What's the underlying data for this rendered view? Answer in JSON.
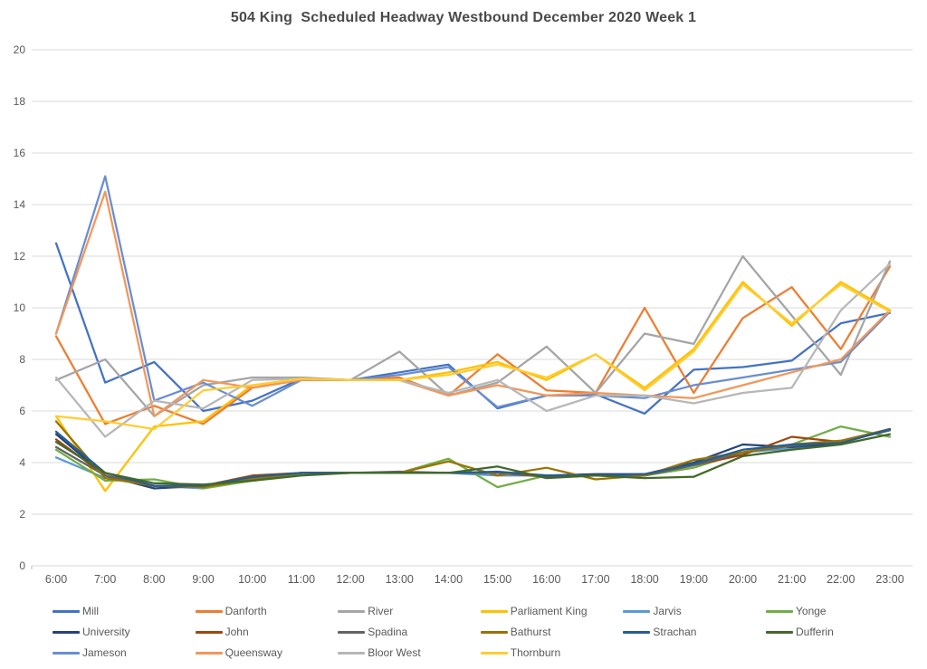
{
  "chart": {
    "title": "504 King  Scheduled Headway Westbound December 2020 Week 1"
  },
  "chart_data": {
    "type": "line",
    "title": "504 King  Scheduled Headway Westbound December 2020 Week 1",
    "xlabel": "",
    "ylabel": "",
    "x": [
      "6:00",
      "7:00",
      "8:00",
      "9:00",
      "10:00",
      "11:00",
      "12:00",
      "13:00",
      "14:00",
      "15:00",
      "16:00",
      "17:00",
      "18:00",
      "19:00",
      "20:00",
      "21:00",
      "22:00",
      "23:00"
    ],
    "ylim": [
      0,
      20
    ],
    "y_ticks": [
      0,
      2,
      4,
      6,
      8,
      10,
      12,
      14,
      16,
      18,
      20
    ],
    "grid": true,
    "legend_position": "bottom",
    "gridline_color": "#D9D9D9",
    "axis_label_color": "#595959",
    "series": [
      {
        "name": "Mill",
        "color": "#4472C4",
        "values": [
          12.5,
          7.1,
          7.9,
          6.0,
          6.4,
          7.25,
          7.2,
          7.5,
          7.8,
          6.1,
          6.6,
          6.65,
          5.9,
          7.6,
          7.7,
          7.95,
          9.4,
          9.8
        ]
      },
      {
        "name": "Danforth",
        "color": "#ED7D31",
        "values": [
          8.9,
          5.5,
          6.2,
          5.5,
          6.9,
          7.2,
          7.2,
          7.3,
          6.6,
          8.2,
          6.8,
          6.7,
          10.0,
          6.7,
          9.6,
          10.8,
          8.4,
          11.6
        ]
      },
      {
        "name": "River",
        "color": "#A5A5A5",
        "values": [
          7.2,
          8.0,
          5.8,
          7.0,
          7.3,
          7.3,
          7.2,
          8.3,
          6.6,
          7.1,
          8.5,
          6.7,
          9.0,
          8.6,
          12.0,
          9.7,
          7.4,
          11.8
        ]
      },
      {
        "name": "Parliament King",
        "color": "#FFC000",
        "values": [
          5.8,
          2.9,
          5.4,
          5.6,
          7.0,
          7.2,
          7.2,
          7.2,
          7.5,
          7.9,
          7.2,
          8.2,
          6.9,
          8.4,
          11.0,
          9.3,
          11.0,
          9.9
        ]
      },
      {
        "name": "Jarvis",
        "color": "#5B9BD5",
        "values": [
          4.2,
          3.4,
          3.1,
          3.0,
          3.4,
          3.6,
          3.6,
          3.6,
          3.6,
          3.5,
          3.5,
          3.5,
          3.55,
          3.9,
          4.4,
          4.55,
          4.8,
          5.3
        ]
      },
      {
        "name": "Yonge",
        "color": "#70AD47",
        "values": [
          4.5,
          3.3,
          3.35,
          3.0,
          3.3,
          3.55,
          3.6,
          3.6,
          4.15,
          3.05,
          3.5,
          3.5,
          3.5,
          3.8,
          4.4,
          4.7,
          5.4,
          5.0
        ]
      },
      {
        "name": "University",
        "color": "#264478",
        "values": [
          5.1,
          3.5,
          3.0,
          3.1,
          3.4,
          3.6,
          3.6,
          3.6,
          3.6,
          3.6,
          3.5,
          3.55,
          3.55,
          4.0,
          4.7,
          4.6,
          4.75,
          5.3
        ]
      },
      {
        "name": "John",
        "color": "#9E480E",
        "values": [
          4.9,
          3.5,
          3.1,
          3.1,
          3.5,
          3.6,
          3.6,
          3.6,
          3.6,
          3.6,
          3.45,
          3.5,
          3.5,
          3.9,
          4.3,
          5.0,
          4.8,
          5.3
        ]
      },
      {
        "name": "Spadina",
        "color": "#636363",
        "values": [
          4.6,
          3.5,
          3.1,
          3.1,
          3.4,
          3.6,
          3.6,
          3.65,
          3.6,
          3.6,
          3.5,
          3.5,
          3.5,
          3.9,
          4.4,
          4.65,
          4.8,
          5.25
        ]
      },
      {
        "name": "Bathurst",
        "color": "#997300",
        "values": [
          5.6,
          3.4,
          3.1,
          3.05,
          3.35,
          3.6,
          3.6,
          3.6,
          4.05,
          3.5,
          3.8,
          3.35,
          3.5,
          4.1,
          4.4,
          4.7,
          4.85,
          5.3
        ]
      },
      {
        "name": "Strachan",
        "color": "#255E91",
        "values": [
          5.2,
          3.6,
          3.1,
          3.1,
          3.45,
          3.6,
          3.6,
          3.6,
          3.6,
          3.65,
          3.5,
          3.5,
          3.55,
          3.95,
          4.5,
          4.7,
          4.75,
          5.3
        ]
      },
      {
        "name": "Dufferin",
        "color": "#43682B",
        "values": [
          4.8,
          3.6,
          3.2,
          3.15,
          3.3,
          3.5,
          3.6,
          3.6,
          3.6,
          3.85,
          3.4,
          3.5,
          3.4,
          3.45,
          4.25,
          4.5,
          4.7,
          5.1
        ]
      },
      {
        "name": "Jameson",
        "color": "#698ED0",
        "values": [
          9.0,
          15.1,
          6.4,
          7.1,
          6.2,
          7.2,
          7.2,
          7.4,
          7.7,
          6.15,
          6.6,
          6.6,
          6.5,
          7.0,
          7.3,
          7.6,
          7.9,
          9.85
        ]
      },
      {
        "name": "Queensway",
        "color": "#F1975A",
        "values": [
          9.0,
          14.5,
          5.8,
          7.2,
          6.9,
          7.2,
          7.2,
          7.2,
          6.6,
          7.0,
          6.6,
          6.7,
          6.6,
          6.5,
          7.0,
          7.5,
          8.0,
          9.9
        ]
      },
      {
        "name": "Bloor West",
        "color": "#B7B7B7",
        "values": [
          7.3,
          5.0,
          6.4,
          6.1,
          7.2,
          7.25,
          7.2,
          7.2,
          6.7,
          7.2,
          6.0,
          6.6,
          6.6,
          6.3,
          6.7,
          6.9,
          9.9,
          11.7
        ]
      },
      {
        "name": "Thornburn",
        "color": "#FFCD33",
        "values": [
          5.8,
          5.6,
          5.3,
          6.8,
          7.0,
          7.25,
          7.2,
          7.2,
          7.4,
          7.8,
          7.3,
          8.2,
          6.8,
          8.3,
          10.9,
          9.4,
          10.9,
          9.85
        ]
      }
    ]
  }
}
